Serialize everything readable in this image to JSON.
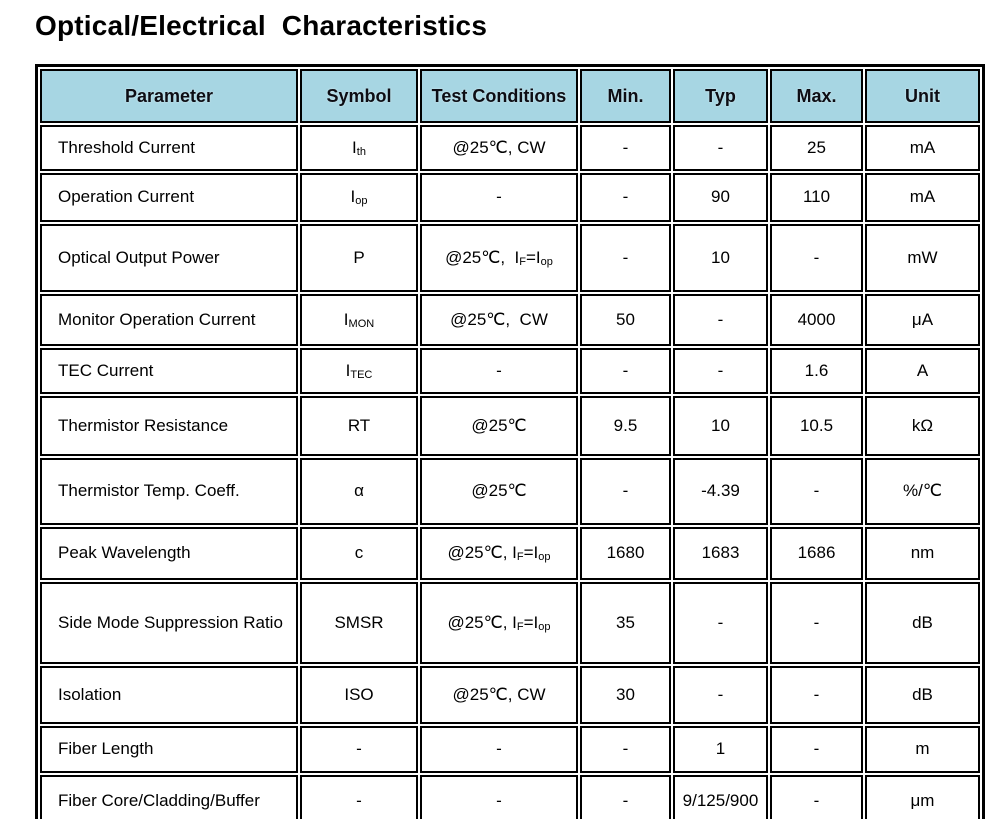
{
  "page": {
    "title": "Optical/Electrical  Characteristics"
  },
  "colors": {
    "header_bg": "#a7d6e3",
    "border": "#000000",
    "text": "#000000"
  },
  "table": {
    "header": [
      "Parameter",
      "Symbol",
      "Test Conditions",
      "Min.",
      "Typ",
      "Max.",
      "Unit"
    ],
    "rows": [
      {
        "parameter": "Threshold Current",
        "symbol": [
          {
            "t": "I"
          },
          {
            "t": "th",
            "sub": true
          }
        ],
        "test_conditions": [
          {
            "t": "@25℃, CW"
          }
        ],
        "min": "-",
        "typ": "-",
        "max": "25",
        "unit": "mA"
      },
      {
        "parameter": "Operation Current",
        "symbol": [
          {
            "t": "I"
          },
          {
            "t": "op",
            "sub": true
          }
        ],
        "test_conditions": [
          {
            "t": "-"
          }
        ],
        "min": "-",
        "typ": "90",
        "max": "110",
        "unit": "mA"
      },
      {
        "parameter": "Optical Output Power",
        "symbol": [
          {
            "t": "P"
          }
        ],
        "test_conditions": [
          {
            "t": "@25℃,  I"
          },
          {
            "t": "F",
            "sub": true
          },
          {
            "t": "=I"
          },
          {
            "t": "op",
            "sub": true
          }
        ],
        "min": "-",
        "typ": "10",
        "max": "-",
        "unit": "mW"
      },
      {
        "parameter": "Monitor Operation Current",
        "symbol": [
          {
            "t": "I"
          },
          {
            "t": "MON",
            "sub": true
          }
        ],
        "test_conditions": [
          {
            "t": "@25℃,  CW"
          }
        ],
        "min": "50",
        "typ": "-",
        "max": "4000",
        "unit": "μA"
      },
      {
        "parameter": "TEC Current",
        "symbol": [
          {
            "t": "I"
          },
          {
            "t": "TEC",
            "sub": true
          }
        ],
        "test_conditions": [
          {
            "t": "-"
          }
        ],
        "min": "-",
        "typ": "-",
        "max": "1.6",
        "unit": "A"
      },
      {
        "parameter": "Thermistor Resistance",
        "symbol": [
          {
            "t": "RT"
          }
        ],
        "test_conditions": [
          {
            "t": "@25℃"
          }
        ],
        "min": "9.5",
        "typ": "10",
        "max": "10.5",
        "unit": "kΩ"
      },
      {
        "parameter": "Thermistor Temp. Coeff.",
        "symbol": [
          {
            "t": "α"
          }
        ],
        "test_conditions": [
          {
            "t": "@25℃"
          }
        ],
        "min": "-",
        "typ": "-4.39",
        "max": "-",
        "unit": "%/℃"
      },
      {
        "parameter": "Peak Wavelength",
        "symbol": [
          {
            "t": "c"
          }
        ],
        "test_conditions": [
          {
            "t": "@25℃, I"
          },
          {
            "t": "F",
            "sub": true
          },
          {
            "t": "=I"
          },
          {
            "t": "op",
            "sub": true
          }
        ],
        "min": "1680",
        "typ": "1683",
        "max": "1686",
        "unit": "nm"
      },
      {
        "parameter": "Side Mode Suppression Ratio",
        "symbol": [
          {
            "t": "SMSR"
          }
        ],
        "test_conditions": [
          {
            "t": "@25℃, I"
          },
          {
            "t": "F",
            "sub": true
          },
          {
            "t": "=I"
          },
          {
            "t": "op",
            "sub": true
          }
        ],
        "min": "35",
        "typ": "-",
        "max": "-",
        "unit": "dB"
      },
      {
        "parameter": "Isolation",
        "symbol": [
          {
            "t": "ISO"
          }
        ],
        "test_conditions": [
          {
            "t": "@25℃, CW"
          }
        ],
        "min": "30",
        "typ": "-",
        "max": "-",
        "unit": "dB"
      },
      {
        "parameter": "Fiber Length",
        "symbol": [
          {
            "t": "-"
          }
        ],
        "test_conditions": [
          {
            "t": "-"
          }
        ],
        "min": "-",
        "typ": "1",
        "max": "-",
        "unit": "m"
      },
      {
        "parameter": "Fiber Core/Cladding/Buffer",
        "symbol": [
          {
            "t": "-"
          }
        ],
        "test_conditions": [
          {
            "t": "-"
          }
        ],
        "min": "-",
        "typ": "9/125/900",
        "max": "-",
        "unit": "μm"
      }
    ]
  }
}
